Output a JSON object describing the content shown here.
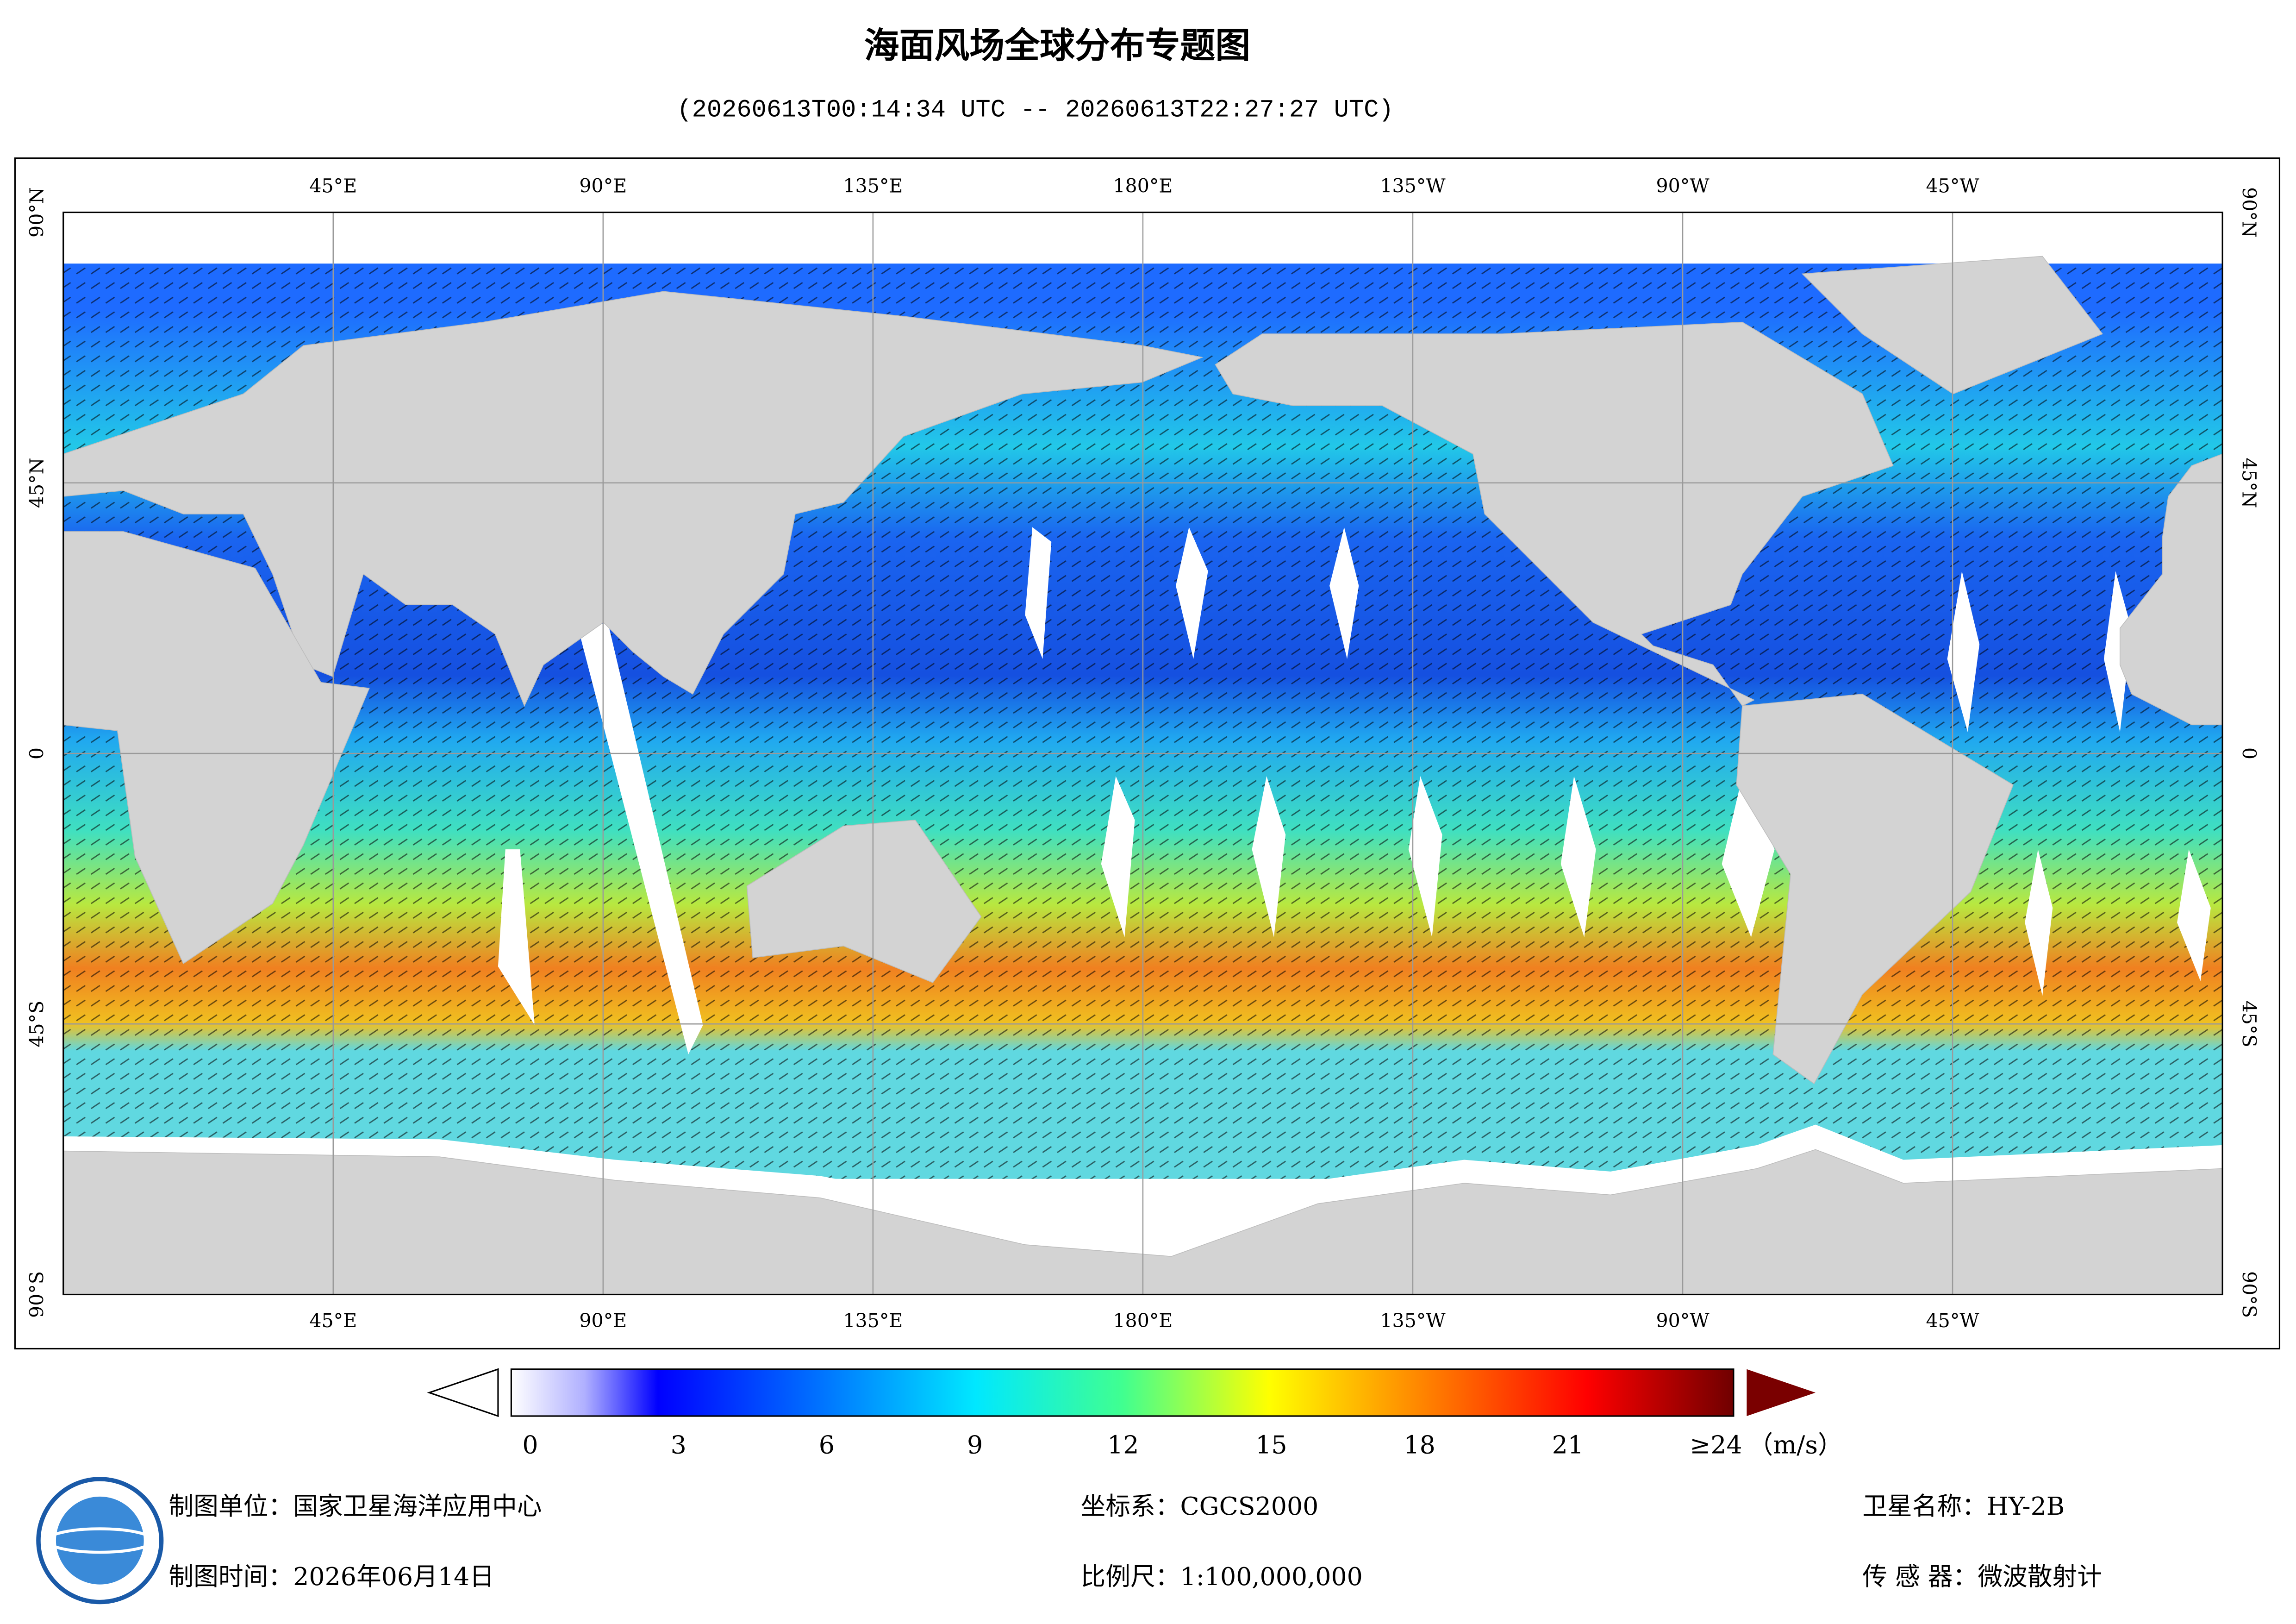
{
  "title": "海面风场全球分布专题图",
  "subtitle": "(20260613T00:14:34 UTC -- 20260613T22:27:27 UTC)",
  "map": {
    "lon_range": [
      0,
      360
    ],
    "lat_range": [
      -90,
      90
    ],
    "lon_ticks": [
      {
        "value": 45,
        "label": "45°E"
      },
      {
        "value": 90,
        "label": "90°E"
      },
      {
        "value": 135,
        "label": "135°E"
      },
      {
        "value": 180,
        "label": "180°E"
      },
      {
        "value": 225,
        "label": "135°W"
      },
      {
        "value": 270,
        "label": "90°W"
      },
      {
        "value": 315,
        "label": "45°W"
      }
    ],
    "lat_ticks": [
      {
        "value": 90,
        "label": "90°N"
      },
      {
        "value": 45,
        "label": "45°N"
      },
      0,
      {
        "value": -45,
        "label": "45°S"
      },
      {
        "value": -90,
        "label": "90°S"
      }
    ]
  },
  "colorbar": {
    "range": [
      0,
      24
    ],
    "ticks": [
      0,
      3,
      6,
      9,
      12,
      15,
      18,
      21,
      {
        "value": 24,
        "label": "≥24"
      }
    ],
    "unit": "（m/s）"
  },
  "footer": {
    "agency": "制图单位：国家卫星海洋应用中心",
    "date": "制图时间：2026年06月14日",
    "crs": "坐标系：CGCS2000",
    "scale": "比例尺：1:100,000,000",
    "satellite": "卫星名称：HY-2B",
    "sensor": "传 感 器：微波散射计"
  }
}
